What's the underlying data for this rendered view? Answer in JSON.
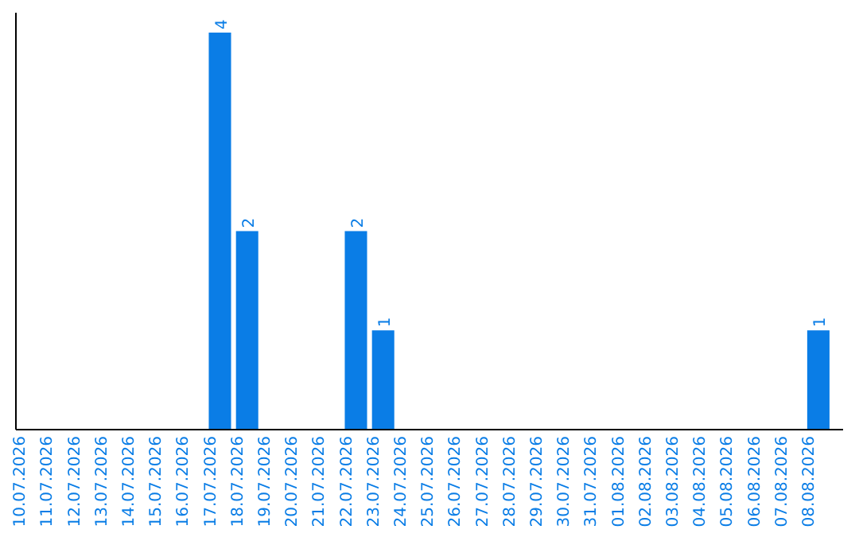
{
  "chart_data": {
    "type": "bar",
    "categories": [
      "10.07.2026",
      "11.07.2026",
      "12.07.2026",
      "13.07.2026",
      "14.07.2026",
      "15.07.2026",
      "16.07.2026",
      "17.07.2026",
      "18.07.2026",
      "19.07.2026",
      "20.07.2026",
      "21.07.2026",
      "22.07.2026",
      "23.07.2026",
      "24.07.2026",
      "25.07.2026",
      "26.07.2026",
      "27.07.2026",
      "28.07.2026",
      "29.07.2026",
      "30.07.2026",
      "31.07.2026",
      "01.08.2026",
      "02.08.2026",
      "03.08.2026",
      "04.08.2026",
      "05.08.2026",
      "06.08.2026",
      "07.08.2026",
      "08.08.2026"
    ],
    "values": [
      0,
      0,
      0,
      0,
      0,
      0,
      0,
      4,
      2,
      0,
      0,
      0,
      2,
      1,
      0,
      0,
      0,
      0,
      0,
      0,
      0,
      0,
      0,
      0,
      0,
      0,
      0,
      0,
      0,
      1
    ],
    "value_labels": [
      null,
      null,
      null,
      null,
      null,
      null,
      null,
      "4",
      "2",
      null,
      null,
      null,
      "2",
      "1",
      null,
      null,
      null,
      null,
      null,
      null,
      null,
      null,
      null,
      null,
      null,
      null,
      null,
      null,
      null,
      "1"
    ],
    "color": "#0a7de6",
    "ylim": [
      0,
      4.2
    ],
    "grid": false
  }
}
